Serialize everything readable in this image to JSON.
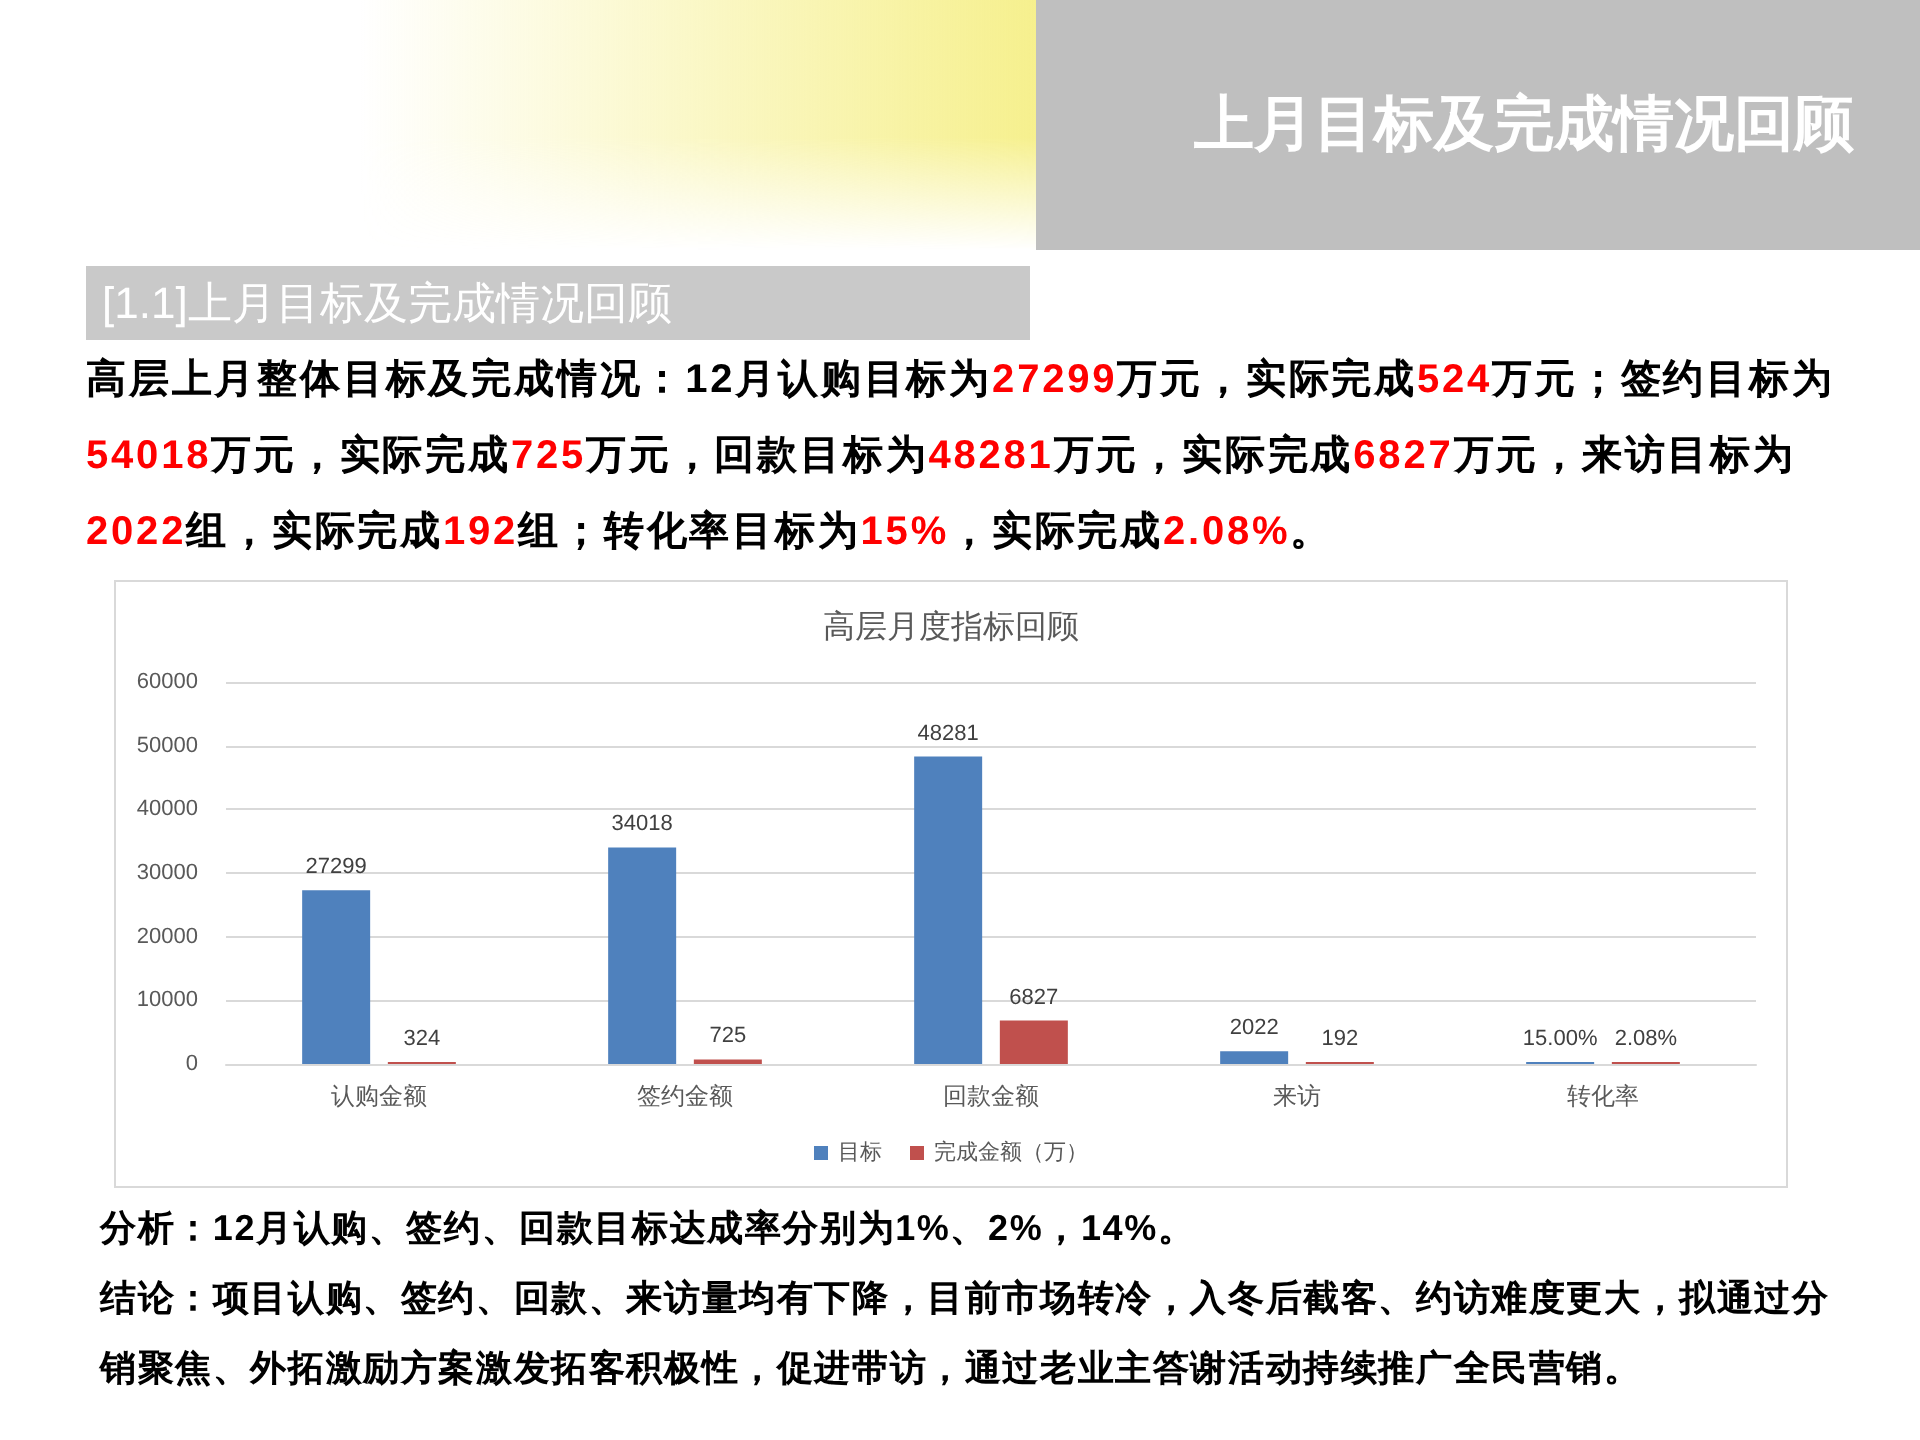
{
  "chart_data": {
    "type": "bar",
    "title": "高层月度指标回顾",
    "categories": [
      "认购金额",
      "签约金额",
      "回款金额",
      "来访",
      "转化率"
    ],
    "series": [
      {
        "name": "目标",
        "color": "#4f81bd",
        "values": [
          27299,
          34018,
          48281,
          2022,
          15
        ],
        "value_labels": [
          "27299",
          "34018",
          "48281",
          "2022",
          "15.00%"
        ]
      },
      {
        "name": "完成金额（万）",
        "color": "#c0504d",
        "values": [
          324,
          725,
          6827,
          192,
          2.08
        ],
        "value_labels": [
          "324",
          "725",
          "6827",
          "192",
          "2.08%"
        ]
      }
    ],
    "ylim": [
      0,
      60000
    ],
    "yticks": [
      0,
      10000,
      20000,
      30000,
      40000,
      50000,
      60000
    ],
    "grid": "y",
    "legend": "bottom",
    "annotations": [
      "上月目标及完成情况回顾",
      "[1.1]上月目标及完成情况回顾",
      "高层上月整体目标及完成情况：12月认购目标为27299万元，实际完成524万元；签约目标为54018万元，实际完成725万元，回款目标为48281万元，实际完成6827万元，来访目标为2022组，实际完成192组；转化率目标为15%，实际完成2.08%。",
      "分析：12月认购、签约、回款目标达成率分别为1%、2%，14%。",
      "结论：项目认购、签约、回款、来访量均有下降，目前市场转冷，入冬后截客、约访难度更大，拟通过分销聚焦、外拓激励方案激发拓客积极性，促进带访，通过老业主答谢活动持续推广全民营销。"
    ]
  }
}
